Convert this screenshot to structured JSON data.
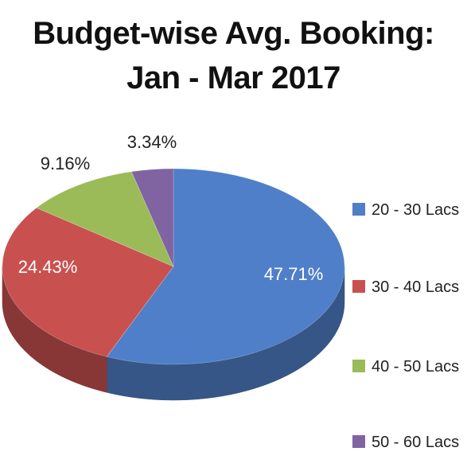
{
  "chart_data": {
    "type": "pie",
    "title_lines": [
      "Budget-wise Avg. Booking:",
      "Jan - Mar 2017"
    ],
    "slices": [
      {
        "label": "20 - 30 Lacs",
        "value": 47.71,
        "display": "47.71%",
        "color": "#4f7fc8"
      },
      {
        "label": "30 - 40 Lacs",
        "value": 24.43,
        "display": "24.43%",
        "color": "#c85150"
      },
      {
        "label": "40 - 50 Lacs",
        "value": 9.16,
        "display": "9.16%",
        "color": "#9bbb59"
      },
      {
        "label": "50 - 60 Lacs",
        "value": 3.34,
        "display": "3.34%",
        "color": "#8064a2"
      }
    ],
    "legend_position": "right",
    "style": "3d"
  }
}
